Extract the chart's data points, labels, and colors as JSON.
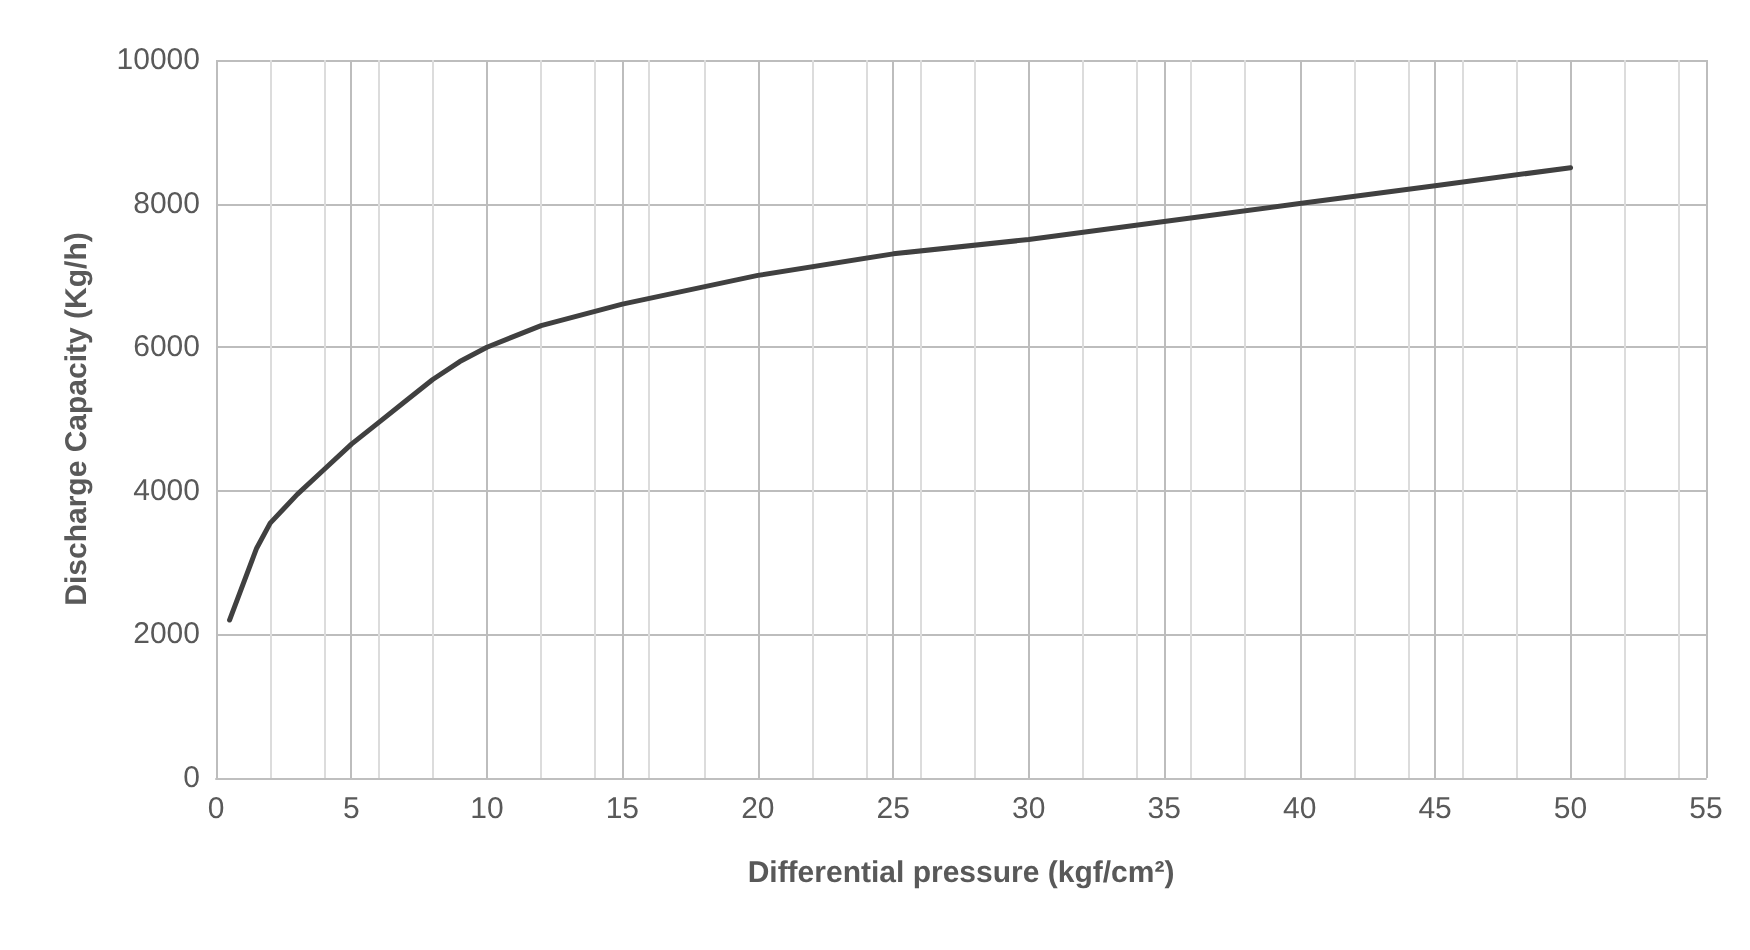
{
  "chart_data": {
    "type": "line",
    "xlabel": "Differential pressure (kgf/cm²)",
    "ylabel": "Discharge Capacity (Kg/h)",
    "x": [
      0.5,
      1,
      1.5,
      2,
      3,
      4,
      5,
      6,
      7,
      8,
      9,
      10,
      12,
      15,
      20,
      25,
      30,
      35,
      40,
      45,
      50
    ],
    "series": [
      {
        "color": "#404040",
        "values": [
          2200,
          2700,
          3200,
          3550,
          3950,
          4300,
          4650,
          4950,
          5250,
          5550,
          5800,
          6000,
          6300,
          6600,
          7000,
          7300,
          7500,
          7750,
          8000,
          8250,
          8500
        ]
      }
    ],
    "xlim": [
      0,
      55
    ],
    "xticks": [
      0,
      5,
      10,
      15,
      20,
      25,
      30,
      35,
      40,
      45,
      50,
      55
    ],
    "ylim": [
      0,
      10000
    ],
    "yticks": [
      0,
      2000,
      4000,
      6000,
      8000,
      10000
    ],
    "grid": true,
    "marker": "none",
    "line_style": "solid"
  }
}
